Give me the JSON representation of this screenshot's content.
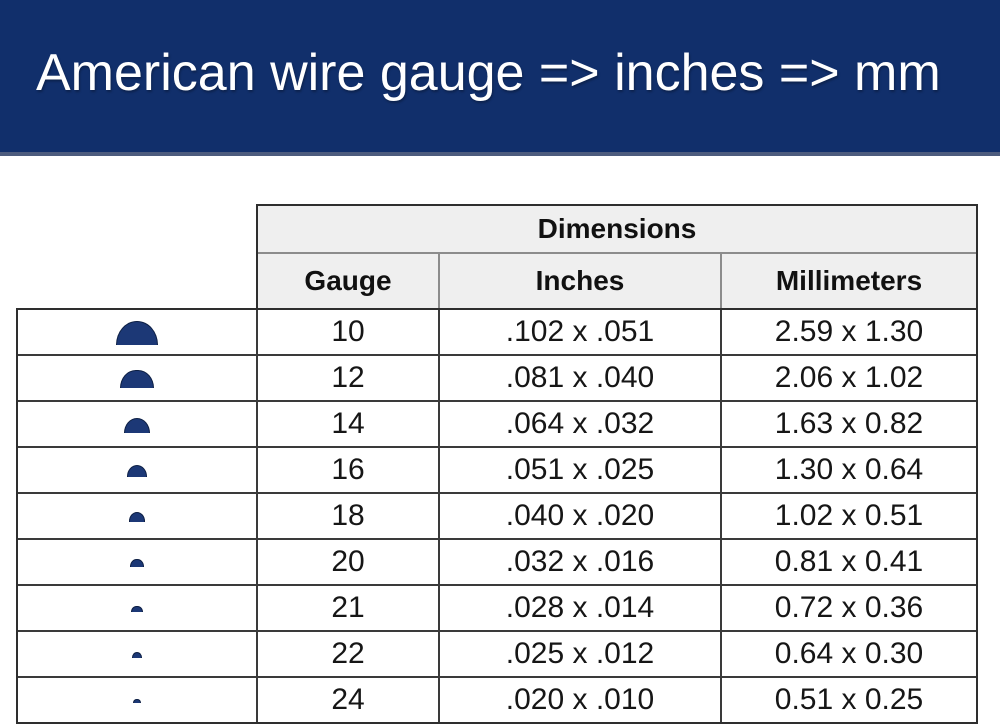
{
  "banner": {
    "title": "American wire gauge => inches => mm"
  },
  "chart_data": {
    "type": "table",
    "title": "American wire gauge => inches => mm",
    "group_header": "Dimensions",
    "columns": [
      "Gauge",
      "Inches",
      "Millimeters"
    ],
    "rows": [
      {
        "icon": "wire-cross-section-semicircle",
        "gauge": "10",
        "inches": ".102 x .051",
        "millimeters": "2.59 x 1.30"
      },
      {
        "icon": "wire-cross-section-semicircle",
        "gauge": "12",
        "inches": ".081 x .040",
        "millimeters": "2.06 x 1.02"
      },
      {
        "icon": "wire-cross-section-semicircle",
        "gauge": "14",
        "inches": ".064 x .032",
        "millimeters": "1.63 x 0.82"
      },
      {
        "icon": "wire-cross-section-semicircle",
        "gauge": "16",
        "inches": ".051 x .025",
        "millimeters": "1.30 x 0.64"
      },
      {
        "icon": "wire-cross-section-semicircle",
        "gauge": "18",
        "inches": ".040 x .020",
        "millimeters": "1.02 x 0.51"
      },
      {
        "icon": "wire-cross-section-semicircle",
        "gauge": "20",
        "inches": ".032 x .016",
        "millimeters": "0.81 x 0.41"
      },
      {
        "icon": "wire-cross-section-semicircle",
        "gauge": "21",
        "inches": ".028 x .014",
        "millimeters": "0.72 x 0.36"
      },
      {
        "icon": "wire-cross-section-semicircle",
        "gauge": "22",
        "inches": ".025 x .012",
        "millimeters": "0.64 x 0.30"
      },
      {
        "icon": "wire-cross-section-semicircle",
        "gauge": "24",
        "inches": ".020 x .010",
        "millimeters": "0.51 x 0.25"
      }
    ],
    "layout_hints": {
      "icon_column_has_no_header": true,
      "icon_sizes_proportional_to_first_inch_dimension": true
    }
  },
  "colors": {
    "banner_bg": "#112f6b",
    "banner_underline": "#4d5c7e",
    "wire_shape": "#1c3876",
    "header_bg": "#efefef",
    "border_dark": "#2e2e2e",
    "border_light": "#8c8c8c",
    "text": "#161616",
    "title_text": "#ffffff"
  }
}
